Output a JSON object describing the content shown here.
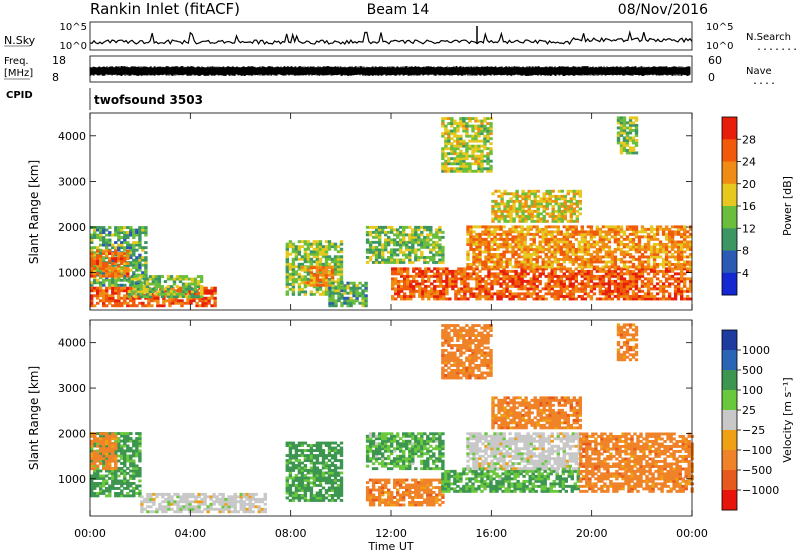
{
  "header": {
    "station": "Rankin Inlet (fitACF)",
    "beam": "Beam 14",
    "date": "08/Nov/2016"
  },
  "strips": {
    "nsky": {
      "left_label": "N.Sky",
      "left_ticks": [
        "10^5",
        "10^0"
      ],
      "right_label": "N.Search",
      "right_ticks": [
        "10^5",
        "10^0"
      ],
      "right_dots": "........"
    },
    "freq": {
      "left_label_top": "Freq.",
      "left_label_bottom": "[MHz]",
      "left_ticks": [
        "18",
        "8"
      ],
      "right_label": "Nave",
      "right_ticks": [
        "60",
        "0"
      ],
      "right_dots": "...."
    },
    "cpid": {
      "label": "CPID",
      "value": "twofsound 3503"
    }
  },
  "colors": {
    "power_scale": [
      "#1428d2",
      "#2a5ab4",
      "#3c9664",
      "#6abe3c",
      "#e6c81e",
      "#f08c14",
      "#f05a0a",
      "#e61e0a"
    ],
    "velocity_scale": [
      "#1e3ca0",
      "#2a64b4",
      "#3c9650",
      "#6ac83c",
      "#c8c8c8",
      "#f0a014",
      "#f08228",
      "#e65a1e",
      "#e6140a"
    ]
  },
  "chart_data": [
    {
      "type": "heatmap",
      "name": "power",
      "ylabel": "Slant Range [km]",
      "xlabel": "",
      "ylim": [
        180,
        4500
      ],
      "yticks": [
        "1000",
        "2000",
        "3000",
        "4000"
      ],
      "ytick_values": [
        1000,
        2000,
        3000,
        4000
      ],
      "xlim": [
        0,
        24
      ],
      "colorbar": {
        "label": "Power [dB]",
        "ticks": [
          "28",
          "24",
          "20",
          "16",
          "12",
          "8",
          "4"
        ],
        "tick_values": [
          28,
          24,
          20,
          16,
          12,
          8,
          4
        ],
        "range": [
          0,
          32
        ]
      },
      "regions": [
        {
          "t0": 0.0,
          "t1": 5.0,
          "r0": 250,
          "r1": 650,
          "value": 26
        },
        {
          "t0": 0.0,
          "t1": 2.2,
          "r0": 700,
          "r1": 2000,
          "value": 12
        },
        {
          "t0": 0.0,
          "t1": 1.5,
          "r0": 900,
          "r1": 1500,
          "value": 24
        },
        {
          "t0": 1.5,
          "t1": 4.5,
          "r0": 450,
          "r1": 900,
          "value": 14
        },
        {
          "t0": 7.8,
          "t1": 10.0,
          "r0": 500,
          "r1": 1700,
          "value": 14
        },
        {
          "t0": 8.4,
          "t1": 9.6,
          "r0": 700,
          "r1": 1100,
          "value": 22
        },
        {
          "t0": 9.5,
          "t1": 11.0,
          "r0": 250,
          "r1": 800,
          "value": 12
        },
        {
          "t0": 11.0,
          "t1": 14.0,
          "r0": 1200,
          "r1": 2000,
          "value": 14
        },
        {
          "t0": 12.0,
          "t1": 24.0,
          "r0": 400,
          "r1": 1100,
          "value": 26
        },
        {
          "t0": 15.0,
          "t1": 24.0,
          "r0": 1100,
          "r1": 2000,
          "value": 22
        },
        {
          "t0": 16.0,
          "t1": 19.5,
          "r0": 2100,
          "r1": 2800,
          "value": 18
        },
        {
          "t0": 14.0,
          "t1": 16.0,
          "r0": 3200,
          "r1": 4400,
          "value": 16
        },
        {
          "t0": 21.0,
          "t1": 21.8,
          "r0": 3600,
          "r1": 4400,
          "value": 14
        }
      ]
    },
    {
      "type": "heatmap",
      "name": "velocity",
      "ylabel": "Slant Range [km]",
      "xlabel": "Time UT",
      "ylim": [
        180,
        4500
      ],
      "yticks": [
        "1000",
        "2000",
        "3000",
        "4000"
      ],
      "ytick_values": [
        1000,
        2000,
        3000,
        4000
      ],
      "xlim": [
        0,
        24
      ],
      "xticks": [
        "00:00",
        "04:00",
        "08:00",
        "12:00",
        "16:00",
        "20:00",
        "00:00"
      ],
      "xtick_values": [
        0,
        4,
        8,
        12,
        16,
        20,
        24
      ],
      "colorbar": {
        "label": "Velocity [m s⁻¹]",
        "ticks": [
          "1000",
          "500",
          "100",
          "25",
          "−25",
          "−100",
          "−500",
          "−1000"
        ],
        "tick_values": [
          1000,
          500,
          100,
          25,
          -25,
          -100,
          -500,
          -1000
        ]
      },
      "regions": [
        {
          "t0": 0.0,
          "t1": 2.0,
          "r0": 600,
          "r1": 2000,
          "value": 150
        },
        {
          "t0": 0.0,
          "t1": 1.0,
          "r0": 1200,
          "r1": 2000,
          "value": -200
        },
        {
          "t0": 2.0,
          "t1": 7.0,
          "r0": 250,
          "r1": 650,
          "value": 0
        },
        {
          "t0": 7.8,
          "t1": 10.0,
          "r0": 500,
          "r1": 1800,
          "value": 200
        },
        {
          "t0": 11.0,
          "t1": 14.0,
          "r0": 400,
          "r1": 1000,
          "value": -300
        },
        {
          "t0": 11.0,
          "t1": 14.0,
          "r0": 1200,
          "r1": 2000,
          "value": 100
        },
        {
          "t0": 14.0,
          "t1": 19.5,
          "r0": 700,
          "r1": 1200,
          "value": 120
        },
        {
          "t0": 15.0,
          "t1": 19.5,
          "r0": 1200,
          "r1": 2000,
          "value": 0
        },
        {
          "t0": 19.5,
          "t1": 24.0,
          "r0": 700,
          "r1": 2000,
          "value": -300
        },
        {
          "t0": 16.0,
          "t1": 19.5,
          "r0": 2100,
          "r1": 2800,
          "value": -300
        },
        {
          "t0": 14.0,
          "t1": 16.0,
          "r0": 3200,
          "r1": 4400,
          "value": -300
        },
        {
          "t0": 21.0,
          "t1": 21.8,
          "r0": 3600,
          "r1": 4400,
          "value": -300
        }
      ]
    }
  ]
}
